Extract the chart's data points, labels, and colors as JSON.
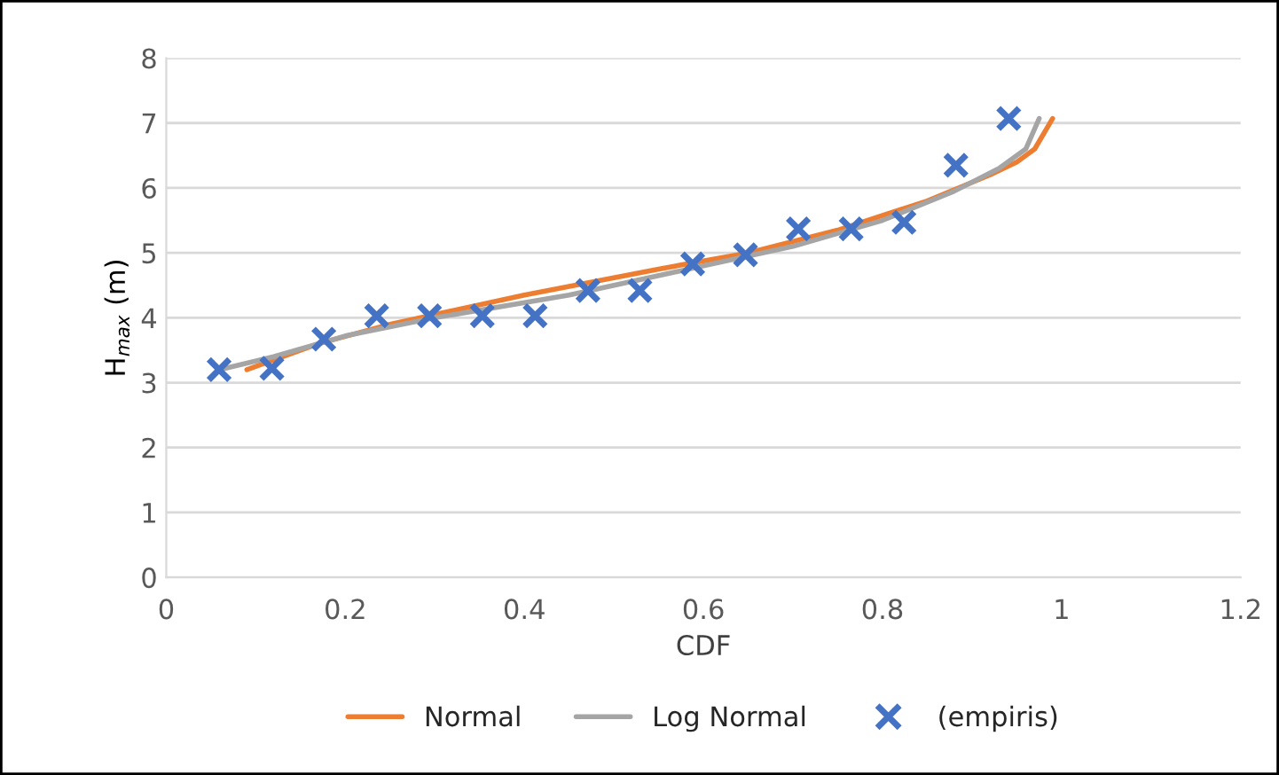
{
  "chart_data": {
    "type": "line",
    "xlabel": "CDF",
    "ylabel": "H$_{max}$ (m)",
    "xlim": [
      0,
      1.2
    ],
    "xticks": [
      0,
      0.2,
      0.4,
      0.6,
      0.8,
      1,
      1.2
    ],
    "ylim": [
      0,
      8
    ],
    "yticks": [
      0,
      1,
      2,
      3,
      4,
      5,
      6,
      7,
      8
    ],
    "grid": "y",
    "legend": "bottom",
    "series": [
      {
        "name": "Normal",
        "color": "#ed7d31",
        "marker": "none",
        "x": [
          0.09,
          0.17,
          0.25,
          0.4,
          0.55,
          0.65,
          0.75,
          0.85,
          0.92,
          0.95,
          0.97,
          0.99
        ],
        "values": [
          3.2,
          3.6,
          3.9,
          4.35,
          4.75,
          5.0,
          5.35,
          5.8,
          6.2,
          6.4,
          6.6,
          7.07
        ]
      },
      {
        "name": "Log Normal",
        "color": "#a5a5a5",
        "marker": "none",
        "x": [
          0.06,
          0.12,
          0.2,
          0.3,
          0.45,
          0.6,
          0.7,
          0.8,
          0.88,
          0.93,
          0.96,
          0.975
        ],
        "values": [
          3.2,
          3.4,
          3.72,
          4.0,
          4.35,
          4.8,
          5.1,
          5.5,
          5.95,
          6.3,
          6.6,
          7.07
        ]
      },
      {
        "name": "(empiris)",
        "type": "scatter",
        "color": "#4472c4",
        "marker": "cross",
        "x": [
          0.059,
          0.118,
          0.176,
          0.235,
          0.294,
          0.353,
          0.412,
          0.471,
          0.529,
          0.588,
          0.647,
          0.706,
          0.765,
          0.824,
          0.882,
          0.941
        ],
        "values": [
          3.2,
          3.22,
          3.67,
          4.03,
          4.03,
          4.03,
          4.03,
          4.42,
          4.42,
          4.83,
          4.97,
          5.37,
          5.37,
          5.47,
          6.35,
          7.07
        ]
      }
    ]
  }
}
